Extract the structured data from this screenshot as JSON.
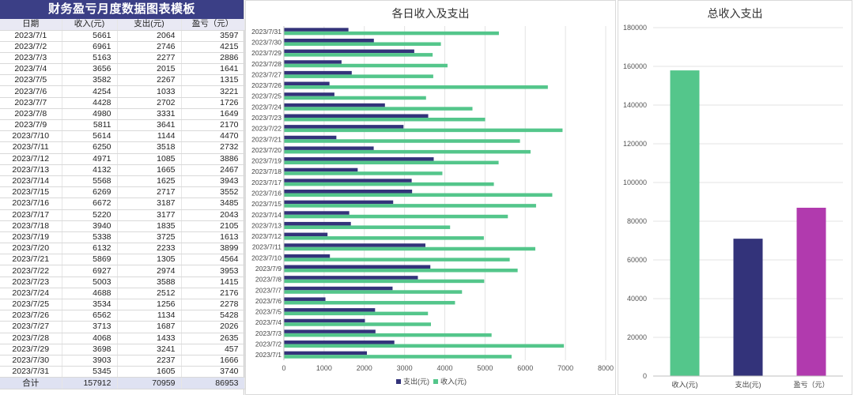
{
  "table": {
    "title": "财务盈亏月度数据图表模板",
    "headers": [
      "日期",
      "收入(元)",
      "支出(元)",
      "盈亏（元）"
    ],
    "rows": [
      [
        "2023/7/1",
        "5661",
        "2064",
        "3597"
      ],
      [
        "2023/7/2",
        "6961",
        "2746",
        "4215"
      ],
      [
        "2023/7/3",
        "5163",
        "2277",
        "2886"
      ],
      [
        "2023/7/4",
        "3656",
        "2015",
        "1641"
      ],
      [
        "2023/7/5",
        "3582",
        "2267",
        "1315"
      ],
      [
        "2023/7/6",
        "4254",
        "1033",
        "3221"
      ],
      [
        "2023/7/7",
        "4428",
        "2702",
        "1726"
      ],
      [
        "2023/7/8",
        "4980",
        "3331",
        "1649"
      ],
      [
        "2023/7/9",
        "5811",
        "3641",
        "2170"
      ],
      [
        "2023/7/10",
        "5614",
        "1144",
        "4470"
      ],
      [
        "2023/7/11",
        "6250",
        "3518",
        "2732"
      ],
      [
        "2023/7/12",
        "4971",
        "1085",
        "3886"
      ],
      [
        "2023/7/13",
        "4132",
        "1665",
        "2467"
      ],
      [
        "2023/7/14",
        "5568",
        "1625",
        "3943"
      ],
      [
        "2023/7/15",
        "6269",
        "2717",
        "3552"
      ],
      [
        "2023/7/16",
        "6672",
        "3187",
        "3485"
      ],
      [
        "2023/7/17",
        "5220",
        "3177",
        "2043"
      ],
      [
        "2023/7/18",
        "3940",
        "1835",
        "2105"
      ],
      [
        "2023/7/19",
        "5338",
        "3725",
        "1613"
      ],
      [
        "2023/7/20",
        "6132",
        "2233",
        "3899"
      ],
      [
        "2023/7/21",
        "5869",
        "1305",
        "4564"
      ],
      [
        "2023/7/22",
        "6927",
        "2974",
        "3953"
      ],
      [
        "2023/7/23",
        "5003",
        "3588",
        "1415"
      ],
      [
        "2023/7/24",
        "4688",
        "2512",
        "2176"
      ],
      [
        "2023/7/25",
        "3534",
        "1256",
        "2278"
      ],
      [
        "2023/7/26",
        "6562",
        "1134",
        "5428"
      ],
      [
        "2023/7/27",
        "3713",
        "1687",
        "2026"
      ],
      [
        "2023/7/28",
        "4068",
        "1433",
        "2635"
      ],
      [
        "2023/7/29",
        "3698",
        "3241",
        "457"
      ],
      [
        "2023/7/30",
        "3903",
        "2237",
        "1666"
      ],
      [
        "2023/7/31",
        "5345",
        "1605",
        "3740"
      ]
    ],
    "total": [
      "合计",
      "157912",
      "70959",
      "86953"
    ]
  },
  "chart_data": [
    {
      "type": "bar",
      "orientation": "horizontal",
      "title": "各日收入及支出",
      "categories": [
        "2023/7/1",
        "2023/7/2",
        "2023/7/3",
        "2023/7/4",
        "2023/7/5",
        "2023/7/6",
        "2023/7/7",
        "2023/7/8",
        "2023/7/9",
        "2023/7/10",
        "2023/7/11",
        "2023/7/12",
        "2023/7/13",
        "2023/7/14",
        "2023/7/15",
        "2023/7/16",
        "2023/7/17",
        "2023/7/18",
        "2023/7/19",
        "2023/7/20",
        "2023/7/21",
        "2023/7/22",
        "2023/7/23",
        "2023/7/24",
        "2023/7/25",
        "2023/7/26",
        "2023/7/27",
        "2023/7/28",
        "2023/7/29",
        "2023/7/30",
        "2023/7/31"
      ],
      "series": [
        {
          "name": "支出(元)",
          "color": "#33337a",
          "values": [
            2064,
            2746,
            2277,
            2015,
            2267,
            1033,
            2702,
            3331,
            3641,
            1144,
            3518,
            1085,
            1665,
            1625,
            2717,
            3187,
            3177,
            1835,
            3725,
            2233,
            1305,
            2974,
            3588,
            2512,
            1256,
            1134,
            1687,
            1433,
            3241,
            2237,
            1605
          ]
        },
        {
          "name": "收入(元)",
          "color": "#54c68b",
          "values": [
            5661,
            6961,
            5163,
            3656,
            3582,
            4254,
            4428,
            4980,
            5811,
            5614,
            6250,
            4971,
            4132,
            5568,
            6269,
            6672,
            5220,
            3940,
            5338,
            6132,
            5869,
            6927,
            5003,
            4688,
            3534,
            6562,
            3713,
            4068,
            3698,
            3903,
            5345
          ]
        }
      ],
      "xlim": [
        0,
        8000
      ],
      "xticks": [
        0,
        1000,
        2000,
        3000,
        4000,
        5000,
        6000,
        7000,
        8000
      ],
      "grid": true,
      "legend": "bottom"
    },
    {
      "type": "bar",
      "title": "总收入支出",
      "categories": [
        "收入(元)",
        "支出(元)",
        "盈亏（元）"
      ],
      "values": [
        157912,
        70959,
        86953
      ],
      "colors": [
        "#54c68b",
        "#33337a",
        "#b13aae"
      ],
      "ylim": [
        0,
        180000
      ],
      "yticks": [
        0,
        20000,
        40000,
        60000,
        80000,
        100000,
        120000,
        140000,
        160000,
        180000
      ],
      "grid": true
    }
  ]
}
